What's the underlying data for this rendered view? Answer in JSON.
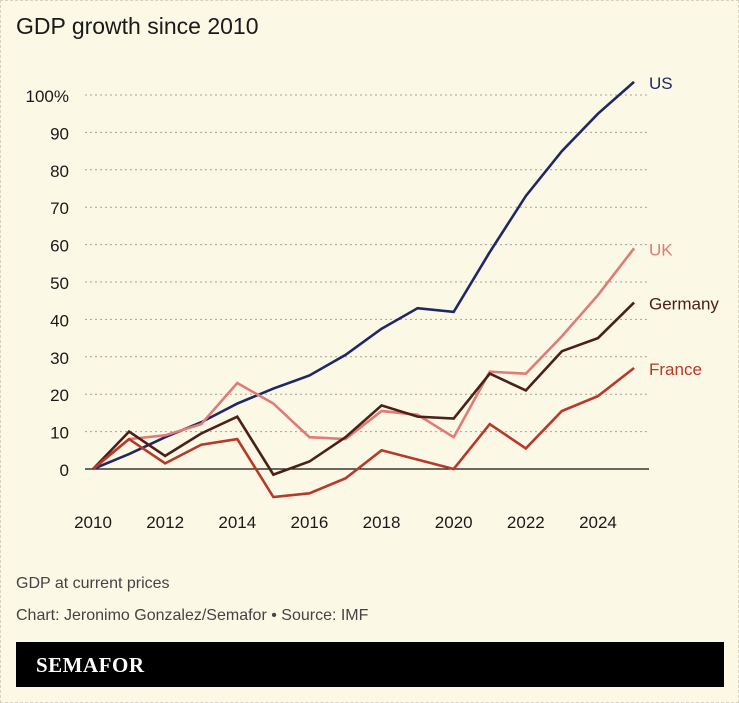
{
  "title": "GDP growth since 2010",
  "note": "GDP at current prices",
  "credit": "Chart: Jeronimo Gonzalez/Semafor • Source: IMF",
  "brand": "SEMAFOR",
  "chart_data": {
    "type": "line",
    "title": "GDP growth since 2010",
    "x": [
      2010,
      2011,
      2012,
      2013,
      2014,
      2015,
      2016,
      2017,
      2018,
      2019,
      2020,
      2021,
      2022,
      2023,
      2024,
      2025
    ],
    "xticks": [
      "2010",
      "2012",
      "2014",
      "2016",
      "2018",
      "2020",
      "2022",
      "2024"
    ],
    "yticks": [
      "0",
      "10",
      "20",
      "30",
      "40",
      "50",
      "60",
      "70",
      "80",
      "90",
      "100%"
    ],
    "ylim": [
      -10,
      105
    ],
    "grid": true,
    "legend": "direct labels at line ends",
    "series": [
      {
        "name": "US",
        "color": "#1f2766",
        "values": [
          0,
          4,
          8.5,
          12.5,
          17.5,
          21.5,
          25,
          30.5,
          37.5,
          43,
          42,
          58,
          73,
          85,
          95,
          103.5
        ]
      },
      {
        "name": "UK",
        "color": "#e07b78",
        "values": [
          0,
          8,
          9,
          12,
          23,
          17.5,
          8.5,
          8,
          15.5,
          14.5,
          8.5,
          26,
          25.5,
          35.5,
          46.5,
          59
        ]
      },
      {
        "name": "Germany",
        "color": "#4a2018",
        "values": [
          0,
          10,
          3.5,
          9.5,
          14,
          -1.5,
          2,
          8.5,
          17,
          14,
          13.5,
          25.5,
          21,
          31.5,
          35,
          44.5
        ]
      },
      {
        "name": "France",
        "color": "#b8382a",
        "values": [
          0,
          8,
          1.5,
          6.5,
          8,
          -7.5,
          -6.5,
          -2.5,
          5,
          2.5,
          0,
          12,
          5.5,
          15.5,
          19.5,
          27
        ]
      }
    ]
  }
}
